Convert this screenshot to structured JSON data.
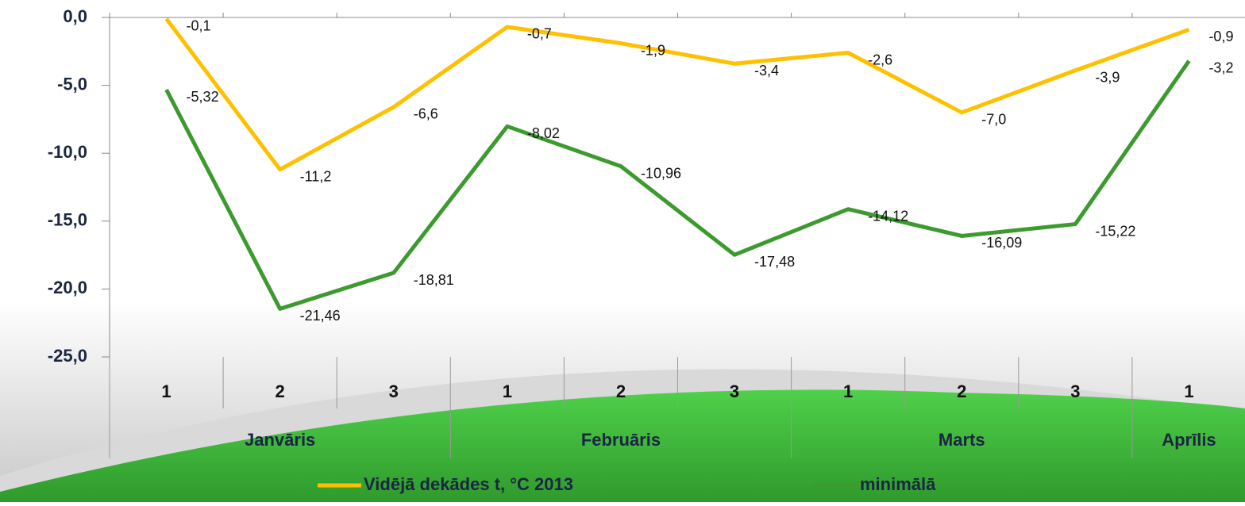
{
  "chart_data": {
    "type": "line",
    "categories": [
      "1",
      "2",
      "3",
      "1",
      "2",
      "3",
      "1",
      "2",
      "3",
      "1"
    ],
    "groups": [
      "Janvāris",
      null,
      null,
      "Februāris",
      null,
      null,
      "Marts",
      null,
      null,
      "Aprīlis"
    ],
    "series": [
      {
        "name": "Vidējā dekādes t, °C 2013",
        "color": "#ffc000",
        "values": [
          -0.1,
          -11.2,
          -6.6,
          -0.7,
          -1.9,
          -3.4,
          -2.6,
          -7.0,
          -3.9,
          -0.9
        ],
        "value_labels": [
          "-0,1",
          "-11,2",
          "-6,6",
          "-0,7",
          "-1,9",
          "-3,4",
          "-2,6",
          "-7,0",
          "-3,9",
          "-0,9"
        ]
      },
      {
        "name": "minimālā",
        "color": "#3c9a2e",
        "values": [
          -5.32,
          -21.46,
          -18.81,
          -8.02,
          -10.96,
          -17.48,
          -14.12,
          -16.09,
          -15.22,
          -3.2
        ],
        "value_labels": [
          "-5,32",
          "-21,46",
          "-18,81",
          "-8,02",
          "-10,96",
          "-17,48",
          "-14,12",
          "-16,09",
          "-15,22",
          "-3,2"
        ]
      }
    ],
    "ylim": [
      -25,
      0
    ],
    "yticks": [
      {
        "value": 0,
        "label": "0,0"
      },
      {
        "value": -5,
        "label": "-5,0"
      },
      {
        "value": -10,
        "label": "-10,0"
      },
      {
        "value": -15,
        "label": "-15,0"
      },
      {
        "value": -20,
        "label": "-20,0"
      },
      {
        "value": -25,
        "label": "-25,0"
      }
    ],
    "legend": "bottom"
  }
}
